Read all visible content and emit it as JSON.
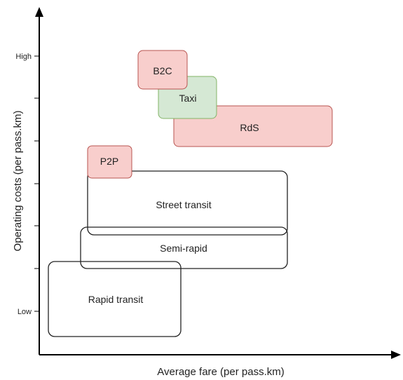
{
  "axes": {
    "x_label": "Average fare (per pass.km)",
    "y_label": "Operating costs (per pass.km)",
    "y_tick_high": "High",
    "y_tick_low": "Low"
  },
  "boxes": [
    {
      "id": "rapid-transit",
      "label": "Rapid transit",
      "style": "outline"
    },
    {
      "id": "semi-rapid",
      "label": "Semi-rapid",
      "style": "outline"
    },
    {
      "id": "street-transit",
      "label": "Street transit",
      "style": "outline"
    },
    {
      "id": "p2p",
      "label": "P2P",
      "style": "red"
    },
    {
      "id": "rds",
      "label": "RdS",
      "style": "red"
    },
    {
      "id": "taxi",
      "label": "Taxi",
      "style": "green"
    },
    {
      "id": "b2c",
      "label": "B2C",
      "style": "red"
    }
  ],
  "colors": {
    "axis": "#000000",
    "outline_stroke": "#222222",
    "red_fill": "#f8cecc",
    "red_stroke": "#b85450",
    "green_fill": "#d5e8d4",
    "green_stroke": "#82b366"
  }
}
